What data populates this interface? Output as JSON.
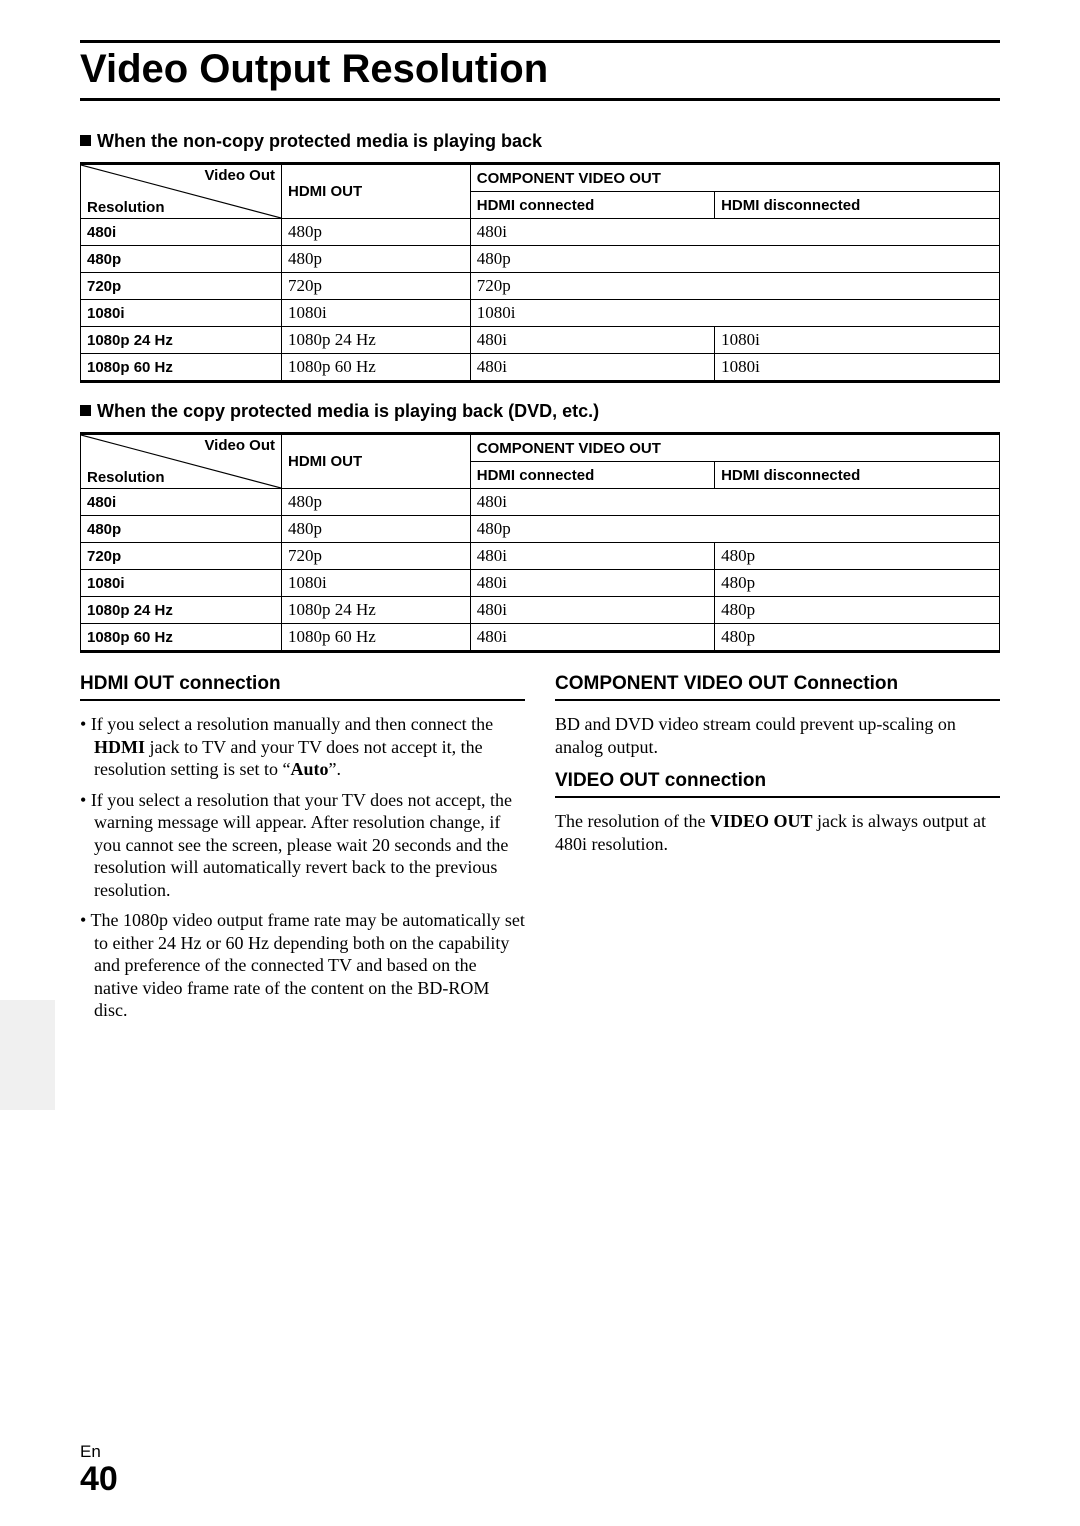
{
  "title": "Video Output Resolution",
  "table_labels": {
    "video_out": "Video Out",
    "resolution": "Resolution",
    "hdmi_out": "HDMI OUT",
    "component_out": "COMPONENT VIDEO OUT",
    "hdmi_connected": "HDMI connected",
    "hdmi_disconnected": "HDMI disconnected"
  },
  "table1": {
    "heading": "When the non-copy protected media is playing back",
    "rows": [
      {
        "res": "480i",
        "hdmi": "480p",
        "conn": "480i",
        "disc": ""
      },
      {
        "res": "480p",
        "hdmi": "480p",
        "conn": "480p",
        "disc": ""
      },
      {
        "res": "720p",
        "hdmi": "720p",
        "conn": "720p",
        "disc": ""
      },
      {
        "res": "1080i",
        "hdmi": "1080i",
        "conn": "1080i",
        "disc": ""
      },
      {
        "res": "1080p 24 Hz",
        "hdmi": "1080p 24 Hz",
        "conn": "480i",
        "disc": "1080i"
      },
      {
        "res": "1080p 60 Hz",
        "hdmi": "1080p 60 Hz",
        "conn": "480i",
        "disc": "1080i"
      }
    ]
  },
  "table2": {
    "heading": "When the copy protected media is playing back (DVD, etc.)",
    "rows": [
      {
        "res": "480i",
        "hdmi": "480p",
        "conn": "480i",
        "disc": ""
      },
      {
        "res": "480p",
        "hdmi": "480p",
        "conn": "480p",
        "disc": ""
      },
      {
        "res": "720p",
        "hdmi": "720p",
        "conn": "480i",
        "disc": "480p"
      },
      {
        "res": "1080i",
        "hdmi": "1080i",
        "conn": "480i",
        "disc": "480p"
      },
      {
        "res": "1080p 24 Hz",
        "hdmi": "1080p 24 Hz",
        "conn": "480i",
        "disc": "480p"
      },
      {
        "res": "1080p 60 Hz",
        "hdmi": "1080p 60 Hz",
        "conn": "480i",
        "disc": "480p"
      }
    ]
  },
  "left_col": {
    "heading": "HDMI OUT connection",
    "bullets": {
      "b0_pre": "If you select a resolution manually and then connect the ",
      "b0_bold": "HDMI",
      "b0_mid": " jack to TV and your TV does not accept it, the resolution setting is set to “",
      "b0_bold2": "Auto",
      "b0_post": "”.",
      "b1": "If you select a resolution that your TV does not accept, the warning message will appear. After resolution change, if you cannot see the screen, please wait 20 seconds and the resolution will automatically revert back to the previous resolution.",
      "b2": "The 1080p video output frame rate may be automatically set to either 24 Hz or 60 Hz depending both on the capability and preference of the connected TV and based on the native video frame rate of the content on the BD-ROM disc."
    }
  },
  "right_col": {
    "heading1": "COMPONENT VIDEO OUT Connection",
    "text1": "BD and DVD video stream could prevent up-scaling on analog output.",
    "heading2": "VIDEO OUT connection",
    "text2_pre": "The resolution of the ",
    "text2_bold": "VIDEO OUT",
    "text2_post": " jack is always output at 480i resolution."
  },
  "footer": {
    "lang": "En",
    "page": "40"
  }
}
